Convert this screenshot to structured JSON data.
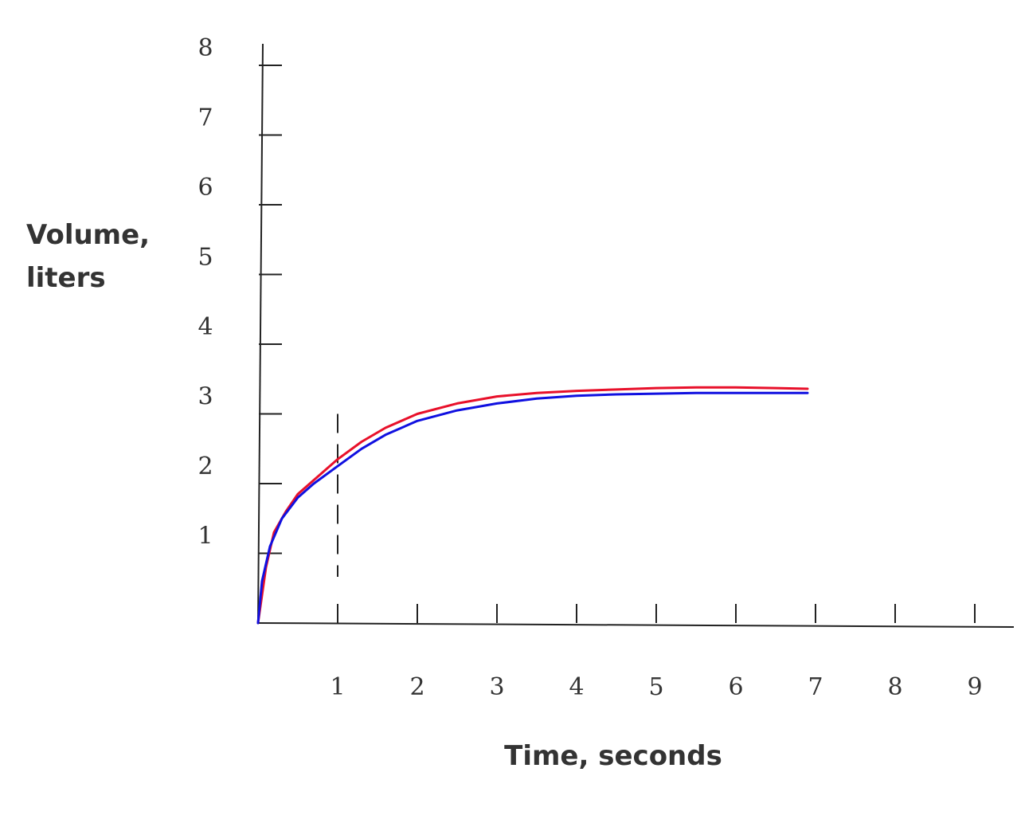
{
  "chart_data": {
    "type": "line",
    "xlabel": "Time, seconds",
    "ylabel": [
      "Volume,",
      "liters"
    ],
    "xlim": [
      0,
      9.5
    ],
    "ylim": [
      0,
      8.5
    ],
    "x_ticks": [
      1,
      2,
      3,
      4,
      5,
      6,
      7,
      8,
      9
    ],
    "y_ticks": [
      1,
      2,
      3,
      4,
      5,
      6,
      7,
      8
    ],
    "grid": false,
    "annotations": [
      {
        "type": "dashed-vertical-line",
        "x": 1,
        "y_top": 3.0
      }
    ],
    "series": [
      {
        "color": "#e8102a",
        "x": [
          0,
          0.1,
          0.2,
          0.35,
          0.5,
          0.7,
          1.0,
          1.3,
          1.6,
          2.0,
          2.5,
          3.0,
          3.5,
          4.0,
          4.5,
          5.0,
          5.5,
          6.0,
          6.5,
          6.9
        ],
        "y": [
          0,
          0.8,
          1.3,
          1.6,
          1.85,
          2.05,
          2.35,
          2.6,
          2.8,
          3.0,
          3.15,
          3.25,
          3.3,
          3.33,
          3.35,
          3.37,
          3.38,
          3.38,
          3.37,
          3.36
        ]
      },
      {
        "color": "#1010e0",
        "x": [
          0,
          0.05,
          0.15,
          0.3,
          0.5,
          0.7,
          1.0,
          1.3,
          1.6,
          2.0,
          2.5,
          3.0,
          3.5,
          4.0,
          4.5,
          5.0,
          5.5,
          6.0,
          6.5,
          6.9
        ],
        "y": [
          0,
          0.6,
          1.1,
          1.5,
          1.8,
          2.0,
          2.25,
          2.5,
          2.7,
          2.9,
          3.05,
          3.15,
          3.22,
          3.26,
          3.28,
          3.29,
          3.3,
          3.3,
          3.3,
          3.3
        ]
      }
    ]
  }
}
